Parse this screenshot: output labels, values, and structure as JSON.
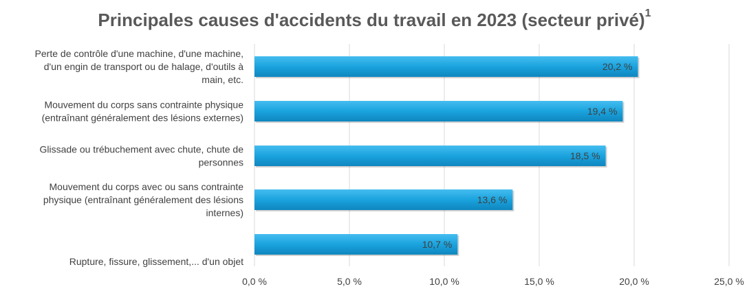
{
  "chart_data": {
    "type": "bar",
    "orientation": "horizontal",
    "title": "Principales causes d'accidents du travail en 2023 (secteur privé)",
    "title_superscript": "1",
    "categories": [
      [
        "Perte de contrôle d'une machine, d'une machine,",
        "d'un engin de transport ou de halage, d'outils à",
        "main, etc."
      ],
      [
        "Mouvement du corps sans contrainte physique",
        "(entraînant généralement des lésions externes)"
      ],
      [
        "Glissade ou trébuchement avec chute, chute de",
        "personnes"
      ],
      [
        "Mouvement du corps avec ou sans contrainte",
        "physique (entraînant généralement des lésions",
        "internes)"
      ],
      [
        "Rupture, fissure, glissement,... d'un objet"
      ]
    ],
    "values": [
      20.2,
      19.4,
      18.5,
      13.6,
      10.7
    ],
    "data_labels": [
      "20,2 %",
      "19,4 %",
      "18,5 %",
      "13,6 %",
      "10,7 %"
    ],
    "xlim": [
      0,
      25
    ],
    "x_ticks": [
      0,
      5,
      10,
      15,
      20,
      25
    ],
    "x_tick_labels": [
      "0,0 %",
      "5,0 %",
      "10,0 %",
      "15,0 %",
      "20,0 %",
      "25,0 %"
    ],
    "grid": true,
    "colors": {
      "bar": "#1aa3de",
      "bar_light": "#45bdf0",
      "bar_dark": "#0f86bf",
      "grid": "#d9d9d9",
      "text": "#404040",
      "title": "#595959"
    }
  }
}
